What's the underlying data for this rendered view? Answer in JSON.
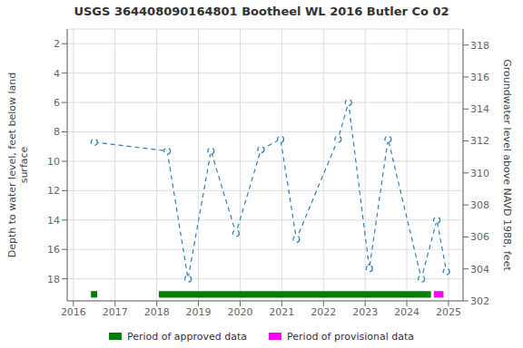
{
  "chart_data": {
    "type": "line",
    "title": "USGS 364408090164801 Bootheel WL 2016 Butler Co 02",
    "y_label": "Depth to water level, feet below land\nsurface",
    "y2_label": "Groundwater level above NAVD 1988, feet",
    "x": [
      2016.5,
      2018.25,
      2018.75,
      2019.3,
      2019.9,
      2020.5,
      2020.97,
      2021.35,
      2022.35,
      2022.6,
      2023.1,
      2023.55,
      2024.35,
      2024.72,
      2024.95
    ],
    "values": [
      8.7,
      9.3,
      18.0,
      9.3,
      14.9,
      9.2,
      8.5,
      15.3,
      8.5,
      6.0,
      17.3,
      8.5,
      18.0,
      14.0,
      17.5
    ],
    "line_style": "dashed",
    "marker": "circle",
    "xlim": [
      2015.85,
      2025.35
    ],
    "xticks": [
      2016,
      2017,
      2018,
      2019,
      2020,
      2021,
      2022,
      2023,
      2024,
      2025
    ],
    "ylim": [
      19.5,
      1.0
    ],
    "yticks": [
      2,
      4,
      6,
      8,
      10,
      12,
      14,
      16,
      18
    ],
    "y2lim": [
      302.0,
      319.0
    ],
    "y2ticks": [
      302,
      304,
      306,
      308,
      310,
      312,
      314,
      316,
      318
    ],
    "grid": true,
    "legend": "bottom",
    "periods": [
      {
        "name": "Period of approved data",
        "color": "#008000",
        "ranges": [
          [
            2016.42,
            2016.57
          ],
          [
            2018.05,
            2024.58
          ]
        ]
      },
      {
        "name": "Period of provisional data",
        "color": "#ff00ff",
        "ranges": [
          [
            2024.65,
            2024.88
          ]
        ]
      }
    ]
  }
}
